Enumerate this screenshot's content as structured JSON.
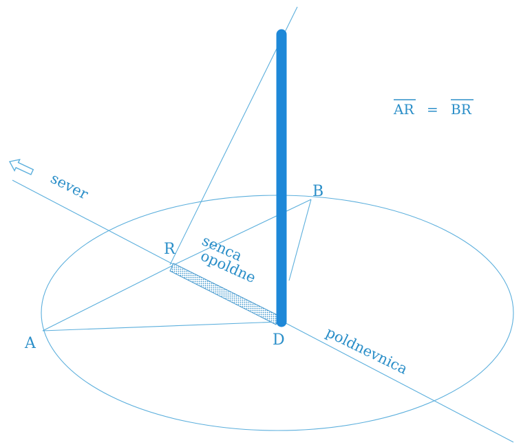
{
  "labels": {
    "point_a": "A",
    "point_b": "B",
    "point_r": "R",
    "point_d": "D",
    "sever": "sever",
    "senca": "senca",
    "opoldne": "opoldne",
    "poldnevnica": "poldnevnica",
    "equation": {
      "left": "AR",
      "equals": "=",
      "right": "BR"
    }
  },
  "icons": {
    "north_arrow": "hollow-arrow-left-icon"
  },
  "colors": {
    "line": "#5aaedc",
    "pole": "#1e88d8",
    "text": "#2a8ec8",
    "shadow": "#4a9ed0"
  }
}
